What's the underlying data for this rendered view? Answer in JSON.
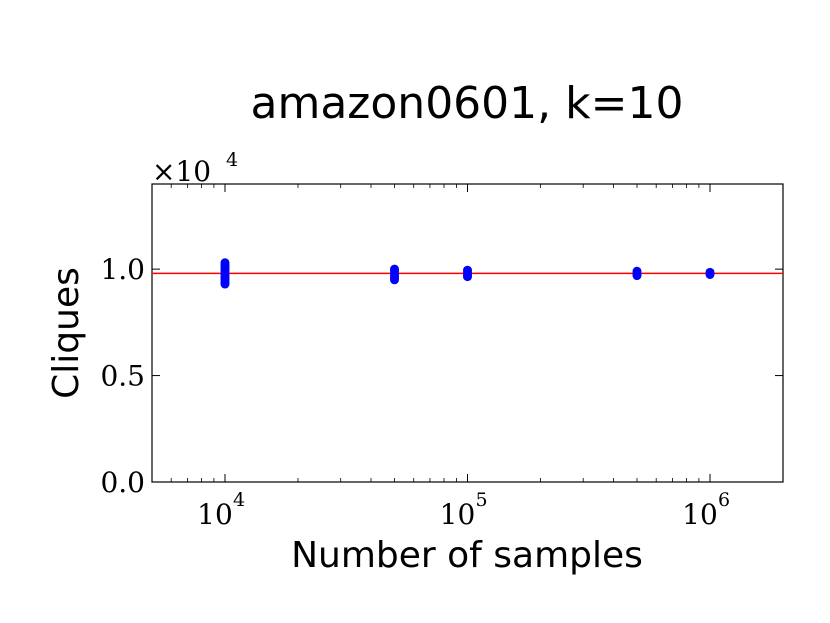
{
  "chart_data": {
    "type": "scatter",
    "title": "amazon0601, k=10",
    "xlabel": "Number of samples",
    "ylabel": "Cliques",
    "x_scale": "log",
    "xlim": [
      5000,
      2000000
    ],
    "ylim": [
      0,
      1.4
    ],
    "y_offset_text": "×10⁴",
    "y_offset_base": "×10",
    "y_offset_exp": "4",
    "y_ticks": [
      0.0,
      0.5,
      1.0
    ],
    "y_tick_labels": [
      "0.0",
      "0.5",
      "1.0"
    ],
    "x_ticks": [
      10000,
      100000,
      1000000
    ],
    "x_tick_labels": [
      {
        "base": "10",
        "exp": "4"
      },
      {
        "base": "10",
        "exp": "5"
      },
      {
        "base": "10",
        "exp": "6"
      }
    ],
    "reference_line": {
      "y": 0.98,
      "color": "#ff0000"
    },
    "point_color": "#0000ff",
    "grid": false,
    "points": [
      {
        "x": 10000,
        "y": 0.93
      },
      {
        "x": 10000,
        "y": 0.94
      },
      {
        "x": 10000,
        "y": 0.95
      },
      {
        "x": 10000,
        "y": 0.96
      },
      {
        "x": 10000,
        "y": 0.97
      },
      {
        "x": 10000,
        "y": 0.98
      },
      {
        "x": 10000,
        "y": 0.99
      },
      {
        "x": 10000,
        "y": 1.0
      },
      {
        "x": 10000,
        "y": 1.01
      },
      {
        "x": 10000,
        "y": 1.02
      },
      {
        "x": 10000,
        "y": 1.03
      },
      {
        "x": 50000,
        "y": 0.95
      },
      {
        "x": 50000,
        "y": 0.96
      },
      {
        "x": 50000,
        "y": 0.97
      },
      {
        "x": 50000,
        "y": 0.98
      },
      {
        "x": 50000,
        "y": 0.99
      },
      {
        "x": 50000,
        "y": 1.0
      },
      {
        "x": 100000,
        "y": 0.965
      },
      {
        "x": 100000,
        "y": 0.975
      },
      {
        "x": 100000,
        "y": 0.985
      },
      {
        "x": 100000,
        "y": 0.995
      },
      {
        "x": 500000,
        "y": 0.97
      },
      {
        "x": 500000,
        "y": 0.98
      },
      {
        "x": 500000,
        "y": 0.99
      },
      {
        "x": 1000000,
        "y": 0.975
      },
      {
        "x": 1000000,
        "y": 0.985
      }
    ]
  }
}
